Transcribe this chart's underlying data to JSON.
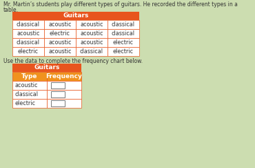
{
  "title_line1": "Mr. Martin’s students play different types of guitars. He recorded the different types in a",
  "title_line2": "table.",
  "instruction_text": "Use the data to complete the frequency chart below.",
  "data_table_title": "Guitars",
  "header_color": "#e8551e",
  "data_table_cells": [
    [
      "classical",
      "acoustic",
      "acoustic",
      "classical"
    ],
    [
      "acoustic",
      "electric",
      "acoustic",
      "classical"
    ],
    [
      "classical",
      "acoustic",
      "acoustic",
      "electric"
    ],
    [
      "electric",
      "acoustic",
      "classical",
      "electric"
    ]
  ],
  "freq_table_title": "Guitars",
  "freq_col_headers": [
    "Type",
    "Frequency"
  ],
  "freq_rows": [
    "acoustic",
    "classical",
    "electric"
  ],
  "bg_color": "#ccddb0",
  "cell_bg": "#ffffff",
  "header_text_color": "#ffffff",
  "subheader_bg": "#f0921e",
  "text_color": "#333333",
  "border_color": "#e8551e"
}
